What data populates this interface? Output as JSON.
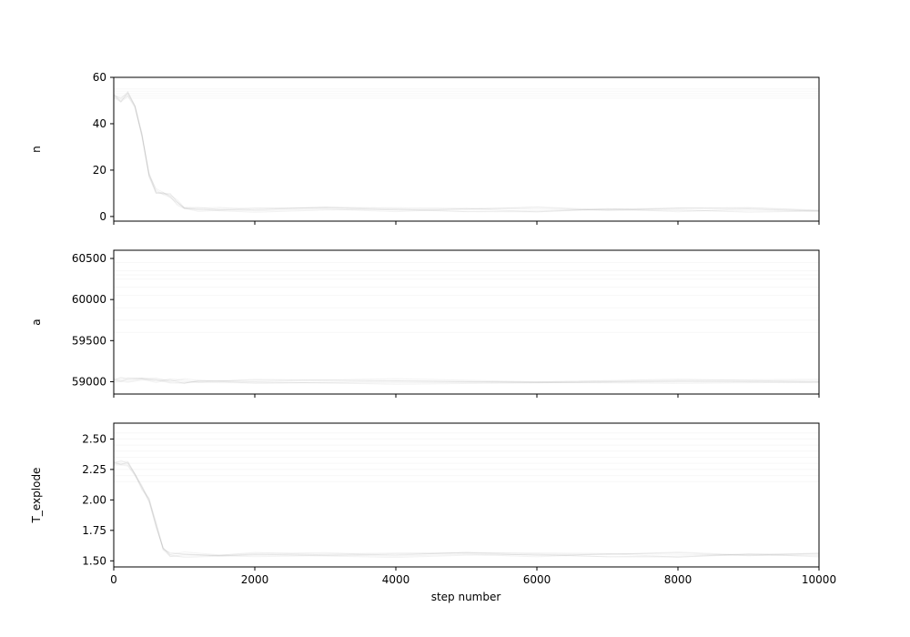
{
  "chart_data": {
    "type": "line",
    "description": "MCMC walker traces vs step number, three stacked panels with shared x axis",
    "xlabel": "step number",
    "xlim": [
      0,
      10000
    ],
    "xticks": [
      0,
      2000,
      4000,
      6000,
      8000,
      10000
    ],
    "xtick_labels": [
      "0",
      "2000",
      "4000",
      "6000",
      "8000",
      "10000"
    ],
    "line_color": "#9e9e9e",
    "panels": [
      {
        "ylabel": "n",
        "ylim": [
          -2,
          60
        ],
        "yticks": [
          0,
          20,
          40,
          60
        ],
        "ytick_labels": [
          "0",
          "20",
          "40",
          "60"
        ],
        "stuck_levels": [
          51,
          52,
          53,
          54,
          55
        ],
        "series": [
          {
            "x": [
              0,
              100,
              200,
              300,
              400,
              500,
              600,
              700,
              800,
              900,
              1000,
              1200,
              1500,
              2000,
              3000,
              4000,
              5000,
              6000,
              7000,
              8000,
              9000,
              10000
            ],
            "y": [
              52,
              50,
              53,
              47,
              35,
              18,
              11,
              10,
              9,
              6,
              4,
              3,
              3,
              3,
              3,
              3,
              3,
              3,
              3,
              3,
              3,
              3
            ]
          }
        ]
      },
      {
        "ylabel": "a",
        "ylim": [
          58850,
          60600
        ],
        "yticks": [
          59000,
          59500,
          60000,
          60500
        ],
        "ytick_labels": [
          "59000",
          "59500",
          "60000",
          "60500"
        ],
        "stuck_levels": [
          59600,
          59750,
          59900,
          60050,
          60150,
          60250,
          60300,
          60350,
          60450
        ],
        "series": [
          {
            "x": [
              0,
              100,
              200,
              400,
              600,
              800,
              1000,
              1200,
              2000,
              4000,
              6000,
              8000,
              10000
            ],
            "y": [
              59015,
              59020,
              59025,
              59022,
              59018,
              59012,
              59008,
              59005,
              59003,
              59003,
              59003,
              59003,
              59003
            ]
          }
        ]
      },
      {
        "ylabel": "T_explode",
        "ylim": [
          1.45,
          2.63
        ],
        "yticks": [
          1.5,
          1.75,
          2.0,
          2.25,
          2.5
        ],
        "ytick_labels": [
          "1.50",
          "1.75",
          "2.00",
          "2.25",
          "2.50"
        ],
        "stuck_levels": [
          2.15,
          2.2,
          2.25,
          2.3,
          2.35,
          2.4,
          2.45,
          2.5,
          2.55
        ],
        "series": [
          {
            "x": [
              0,
              100,
              200,
              300,
              400,
              500,
              600,
              700,
              800,
              1000,
              1500,
              2000,
              3000,
              4000,
              5000,
              6000,
              7000,
              8000,
              9000,
              10000
            ],
            "y": [
              2.3,
              2.3,
              2.3,
              2.2,
              2.1,
              2.0,
              1.8,
              1.6,
              1.55,
              1.55,
              1.55,
              1.55,
              1.55,
              1.55,
              1.55,
              1.55,
              1.55,
              1.55,
              1.55,
              1.55
            ]
          }
        ]
      }
    ]
  }
}
